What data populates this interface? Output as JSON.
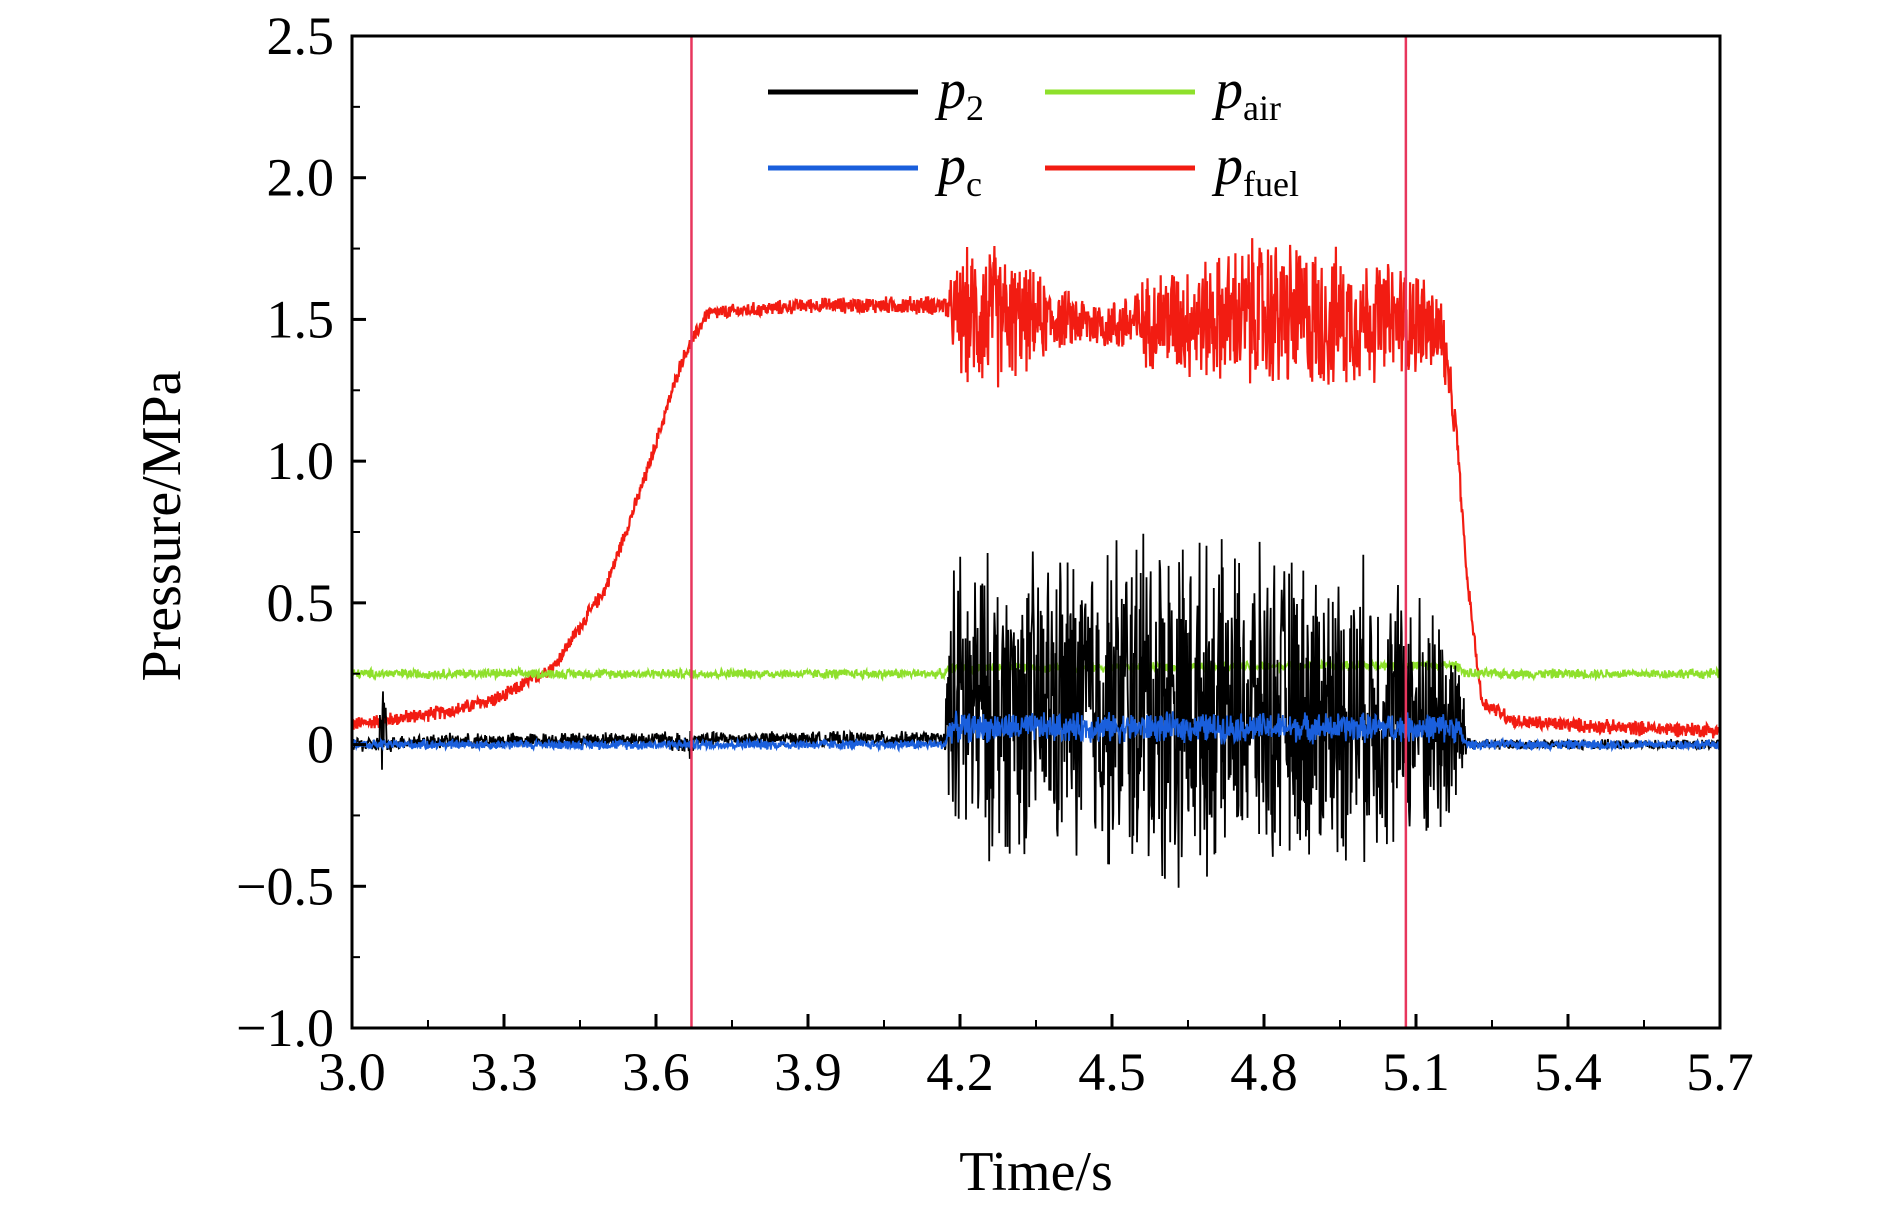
{
  "chart_data": {
    "type": "line",
    "title": "",
    "xlabel": "Time/s",
    "ylabel": "Pressure/MPa",
    "xlim": [
      3.0,
      5.7
    ],
    "ylim": [
      -1.0,
      2.5
    ],
    "xticks": [
      3.0,
      3.3,
      3.6,
      3.9,
      4.2,
      4.5,
      4.8,
      5.1,
      5.4,
      5.7
    ],
    "xtick_labels": [
      "3.0",
      "3.3",
      "3.6",
      "3.9",
      "4.2",
      "4.5",
      "4.8",
      "5.1",
      "5.4",
      "5.7"
    ],
    "yticks": [
      -1.0,
      -0.5,
      0,
      0.5,
      1.0,
      1.5,
      2.0,
      2.5
    ],
    "ytick_labels": [
      "−1.0",
      "−0.5",
      "0",
      "0.5",
      "1.0",
      "1.5",
      "2.0",
      "2.5"
    ],
    "grid": false,
    "legend_position": "top-center",
    "vertical_markers": [
      {
        "x": 3.67,
        "color": "#e8365d"
      },
      {
        "x": 5.08,
        "color": "#e8365d"
      }
    ],
    "series": [
      {
        "name": "p",
        "sub": "2",
        "color": "#000000",
        "noisy": true,
        "x": [
          3.0,
          3.05,
          3.06,
          3.07,
          3.1,
          3.6,
          3.67,
          3.68,
          4.17,
          4.18,
          4.3,
          4.5,
          4.58,
          4.7,
          4.9,
          5.0,
          5.1,
          5.18,
          5.2,
          5.22,
          5.7
        ],
        "center": [
          0.0,
          0.0,
          0.05,
          0.0,
          0.01,
          0.02,
          0.0,
          0.02,
          0.02,
          0.13,
          0.13,
          0.15,
          0.15,
          0.13,
          0.12,
          0.12,
          0.1,
          0.05,
          0.01,
          0.0,
          0.0
        ],
        "amp": [
          0.03,
          0.03,
          0.35,
          0.03,
          0.03,
          0.03,
          0.06,
          0.03,
          0.03,
          0.62,
          0.58,
          0.66,
          0.75,
          0.62,
          0.6,
          0.58,
          0.52,
          0.45,
          0.05,
          0.02,
          0.02
        ]
      },
      {
        "name": "p",
        "sub": "air",
        "color": "#8ee02b",
        "noisy": true,
        "x": [
          3.0,
          4.17,
          4.18,
          5.18,
          5.2,
          5.7
        ],
        "center": [
          0.25,
          0.25,
          0.27,
          0.28,
          0.25,
          0.25
        ],
        "amp": [
          0.02,
          0.02,
          0.02,
          0.02,
          0.02,
          0.02
        ]
      },
      {
        "name": "p",
        "sub": "c",
        "color": "#1a5fdc",
        "noisy": true,
        "x": [
          3.0,
          4.17,
          4.18,
          5.18,
          5.2,
          5.7
        ],
        "center": [
          0.0,
          0.0,
          0.06,
          0.06,
          0.0,
          0.0
        ],
        "amp": [
          0.02,
          0.02,
          0.06,
          0.06,
          0.02,
          0.02
        ]
      },
      {
        "name": "p",
        "sub": "fuel",
        "color": "#f21c12",
        "noisy": true,
        "x": [
          3.0,
          3.2,
          3.3,
          3.4,
          3.5,
          3.58,
          3.65,
          3.7,
          3.9,
          4.17,
          4.2,
          4.25,
          4.3,
          4.4,
          4.5,
          4.6,
          4.7,
          4.8,
          4.9,
          5.0,
          5.1,
          5.15,
          5.18,
          5.2,
          5.23,
          5.3,
          5.5,
          5.7
        ],
        "center": [
          0.07,
          0.12,
          0.17,
          0.28,
          0.55,
          0.95,
          1.35,
          1.52,
          1.55,
          1.55,
          1.5,
          1.52,
          1.5,
          1.5,
          1.48,
          1.5,
          1.5,
          1.52,
          1.5,
          1.5,
          1.5,
          1.45,
          1.1,
          0.6,
          0.15,
          0.08,
          0.06,
          0.05
        ],
        "amp": [
          0.03,
          0.03,
          0.03,
          0.03,
          0.03,
          0.03,
          0.03,
          0.03,
          0.03,
          0.04,
          0.25,
          0.32,
          0.25,
          0.12,
          0.1,
          0.22,
          0.25,
          0.32,
          0.3,
          0.25,
          0.22,
          0.18,
          0.05,
          0.03,
          0.03,
          0.03,
          0.03,
          0.03
        ]
      }
    ]
  }
}
